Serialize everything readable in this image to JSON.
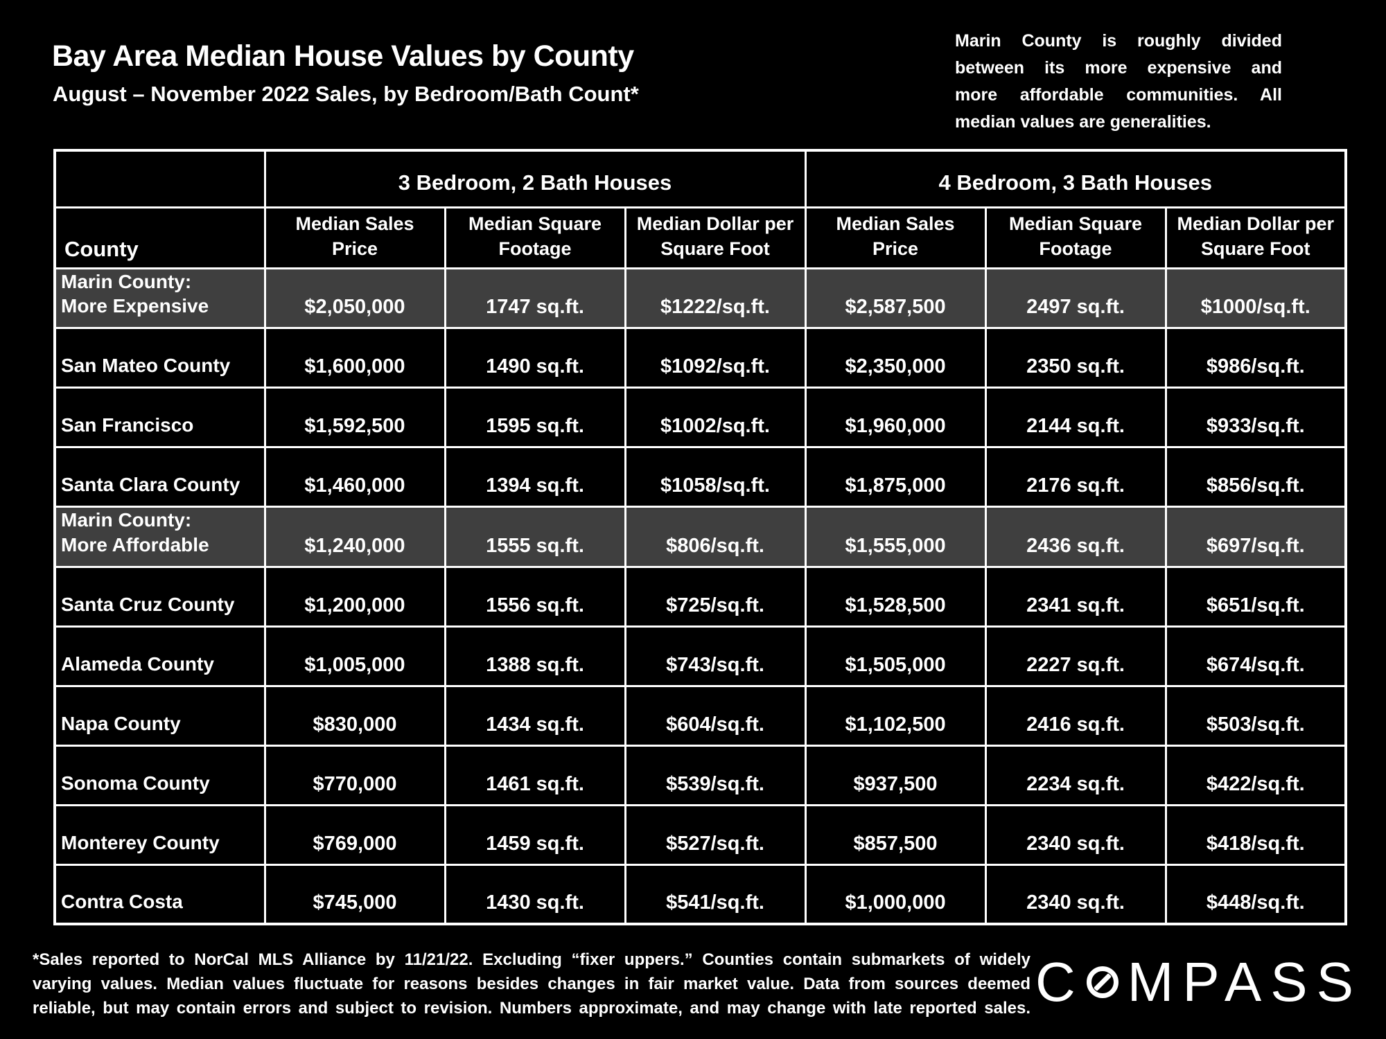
{
  "header": {
    "title": "Bay Area Median House Values by County",
    "subtitle": "August – November 2022 Sales, by Bedroom/Bath Count*"
  },
  "note": {
    "lines": [
      "Marin County is roughly divided",
      "between its more expensive and",
      "more affordable communities. All",
      "median values are generalities."
    ]
  },
  "table": {
    "county_header": "County",
    "groups": [
      {
        "label": "3 Bedroom, 2 Bath Houses",
        "columns": [
          "Median Sales Price",
          "Median Square Footage",
          "Median Dollar per Square Foot"
        ]
      },
      {
        "label": "4 Bedroom, 3 Bath Houses",
        "columns": [
          "Median Sales Price",
          "Median Square Footage",
          "Median Dollar per Square Foot"
        ]
      }
    ],
    "rows": [
      {
        "county": "Marin County:\nMore Expensive",
        "highlight": true,
        "values": [
          "$2,050,000",
          "1747 sq.ft.",
          "$1222/sq.ft.",
          "$2,587,500",
          "2497 sq.ft.",
          "$1000/sq.ft."
        ]
      },
      {
        "county": "San Mateo County",
        "highlight": false,
        "values": [
          "$1,600,000",
          "1490 sq.ft.",
          "$1092/sq.ft.",
          "$2,350,000",
          "2350 sq.ft.",
          "$986/sq.ft."
        ]
      },
      {
        "county": "San Francisco",
        "highlight": false,
        "values": [
          "$1,592,500",
          "1595 sq.ft.",
          "$1002/sq.ft.",
          "$1,960,000",
          "2144 sq.ft.",
          "$933/sq.ft."
        ]
      },
      {
        "county": "Santa Clara County",
        "highlight": false,
        "values": [
          "$1,460,000",
          "1394 sq.ft.",
          "$1058/sq.ft.",
          "$1,875,000",
          "2176 sq.ft.",
          "$856/sq.ft."
        ]
      },
      {
        "county": "Marin County:\nMore Affordable",
        "highlight": true,
        "values": [
          "$1,240,000",
          "1555 sq.ft.",
          "$806/sq.ft.",
          "$1,555,000",
          "2436 sq.ft.",
          "$697/sq.ft."
        ]
      },
      {
        "county": "Santa Cruz County",
        "highlight": false,
        "values": [
          "$1,200,000",
          "1556 sq.ft.",
          "$725/sq.ft.",
          "$1,528,500",
          "2341 sq.ft.",
          "$651/sq.ft."
        ]
      },
      {
        "county": "Alameda County",
        "highlight": false,
        "values": [
          "$1,005,000",
          "1388 sq.ft.",
          "$743/sq.ft.",
          "$1,505,000",
          "2227 sq.ft.",
          "$674/sq.ft."
        ]
      },
      {
        "county": "Napa County",
        "highlight": false,
        "values": [
          "$830,000",
          "1434 sq.ft.",
          "$604/sq.ft.",
          "$1,102,500",
          "2416 sq.ft.",
          "$503/sq.ft."
        ]
      },
      {
        "county": "Sonoma County",
        "highlight": false,
        "values": [
          "$770,000",
          "1461 sq.ft.",
          "$539/sq.ft.",
          "$937,500",
          "2234 sq.ft.",
          "$422/sq.ft."
        ]
      },
      {
        "county": "Monterey County",
        "highlight": false,
        "values": [
          "$769,000",
          "1459 sq.ft.",
          "$527/sq.ft.",
          "$857,500",
          "2340 sq.ft.",
          "$418/sq.ft."
        ]
      },
      {
        "county": "Contra Costa",
        "highlight": false,
        "values": [
          "$745,000",
          "1430 sq.ft.",
          "$541/sq.ft.",
          "$1,000,000",
          "2340 sq.ft.",
          "$448/sq.ft."
        ]
      }
    ]
  },
  "footnote": {
    "lines": [
      "*Sales reported to NorCal MLS Alliance by 11/21/22. Excluding “fixer uppers.” Counties contain submarkets of widely",
      "varying values. Median values fluctuate for reasons besides changes in fair market value. Data from sources deemed",
      "reliable, but may contain errors and subject to revision.  Numbers approximate, and may change with late reported sales."
    ]
  },
  "logo": {
    "text": "COMPASS",
    "prefix": "C",
    "suffix": "MPASS"
  },
  "colors": {
    "background": "#000000",
    "text": "#ffffff",
    "border": "#ffffff",
    "highlight_row": "#3f3f3f"
  },
  "chart_data": {
    "type": "table",
    "title": "Bay Area Median House Values by County",
    "subtitle": "August – November 2022 Sales, by Bedroom/Bath Count*",
    "categories": [
      "Marin County: More Expensive",
      "San Mateo County",
      "San Francisco",
      "Santa Clara County",
      "Marin County: More Affordable",
      "Santa Cruz County",
      "Alameda County",
      "Napa County",
      "Sonoma County",
      "Monterey County",
      "Contra Costa"
    ],
    "series": [
      {
        "name": "3BR/2BA Median Sales Price ($)",
        "values": [
          2050000,
          1600000,
          1592500,
          1460000,
          1240000,
          1200000,
          1005000,
          830000,
          770000,
          769000,
          745000
        ]
      },
      {
        "name": "3BR/2BA Median Square Footage (sq.ft.)",
        "values": [
          1747,
          1490,
          1595,
          1394,
          1555,
          1556,
          1388,
          1434,
          1461,
          1459,
          1430
        ]
      },
      {
        "name": "3BR/2BA Median Dollar per Square Foot ($/sq.ft.)",
        "values": [
          1222,
          1092,
          1002,
          1058,
          806,
          725,
          743,
          604,
          539,
          527,
          541
        ]
      },
      {
        "name": "4BR/3BA Median Sales Price ($)",
        "values": [
          2587500,
          2350000,
          1960000,
          1875000,
          1555000,
          1528500,
          1505000,
          1102500,
          937500,
          857500,
          1000000
        ]
      },
      {
        "name": "4BR/3BA Median Square Footage (sq.ft.)",
        "values": [
          2497,
          2350,
          2144,
          2176,
          2436,
          2341,
          2227,
          2416,
          2234,
          2340,
          2340
        ]
      },
      {
        "name": "4BR/3BA Median Dollar per Square Foot ($/sq.ft.)",
        "values": [
          1000,
          986,
          933,
          856,
          697,
          651,
          674,
          503,
          422,
          418,
          448
        ]
      }
    ],
    "highlighted_rows": [
      "Marin County: More Expensive",
      "Marin County: More Affordable"
    ],
    "legend_position": "none",
    "grid": true
  }
}
